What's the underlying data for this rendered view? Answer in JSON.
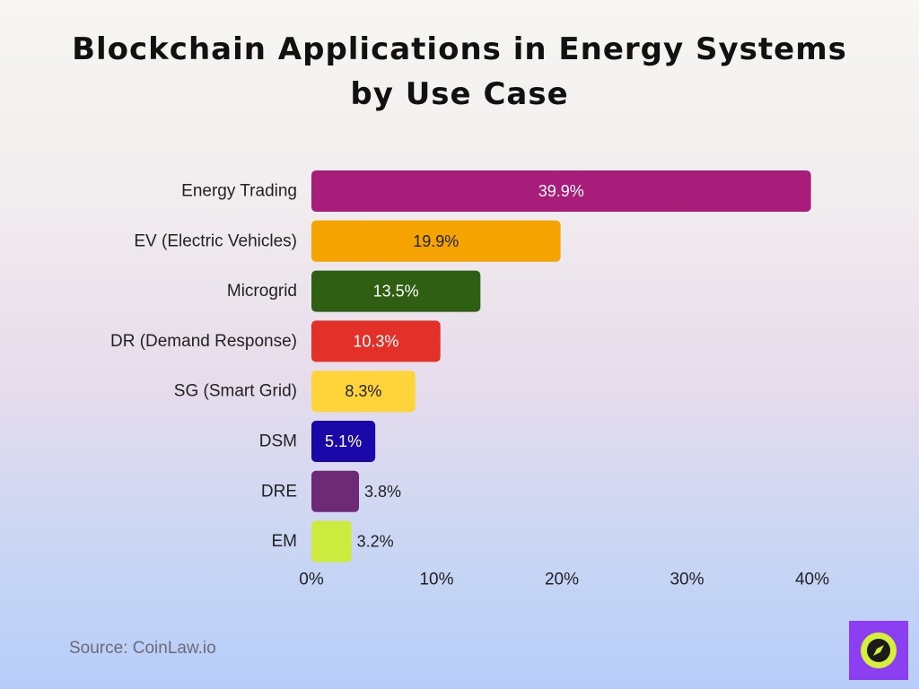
{
  "title": "Blockchain Applications in Energy Systems by Use Case",
  "source": "Source: CoinLaw.io",
  "chart_data": {
    "type": "bar",
    "orientation": "horizontal",
    "title": "Blockchain Applications in Energy Systems by Use Case",
    "categories": [
      "Energy Trading",
      "EV (Electric Vehicles)",
      "Microgrid",
      "DR (Demand Response)",
      "SG (Smart Grid)",
      "DSM",
      "DRE",
      "EM"
    ],
    "values": [
      39.9,
      19.9,
      13.5,
      10.3,
      8.3,
      5.1,
      3.8,
      3.2
    ],
    "value_labels": [
      "39.9%",
      "19.9%",
      "13.5%",
      "10.3%",
      "8.3%",
      "5.1%",
      "3.8%",
      "3.2%"
    ],
    "colors": [
      "#a81c7a",
      "#f5a300",
      "#2f5f12",
      "#e3312a",
      "#ffd43a",
      "#1a08a8",
      "#6f2a75",
      "#cdea3f"
    ],
    "label_colors": [
      "#ffffff",
      "#222222",
      "#ffffff",
      "#ffffff",
      "#222222",
      "#ffffff",
      "#222222",
      "#222222"
    ],
    "label_inside": [
      true,
      true,
      true,
      true,
      true,
      true,
      false,
      false
    ],
    "xlim": [
      0,
      40
    ],
    "xticks": [
      0,
      10,
      20,
      30,
      40
    ],
    "xtick_labels": [
      "0%",
      "10%",
      "20%",
      "30%",
      "40%"
    ],
    "xlabel": "",
    "ylabel": "",
    "grid": false,
    "legend": "none"
  },
  "logo": {
    "icon": "compass-icon",
    "background": "#8b3ff0",
    "circle": "#d6ef3a"
  }
}
